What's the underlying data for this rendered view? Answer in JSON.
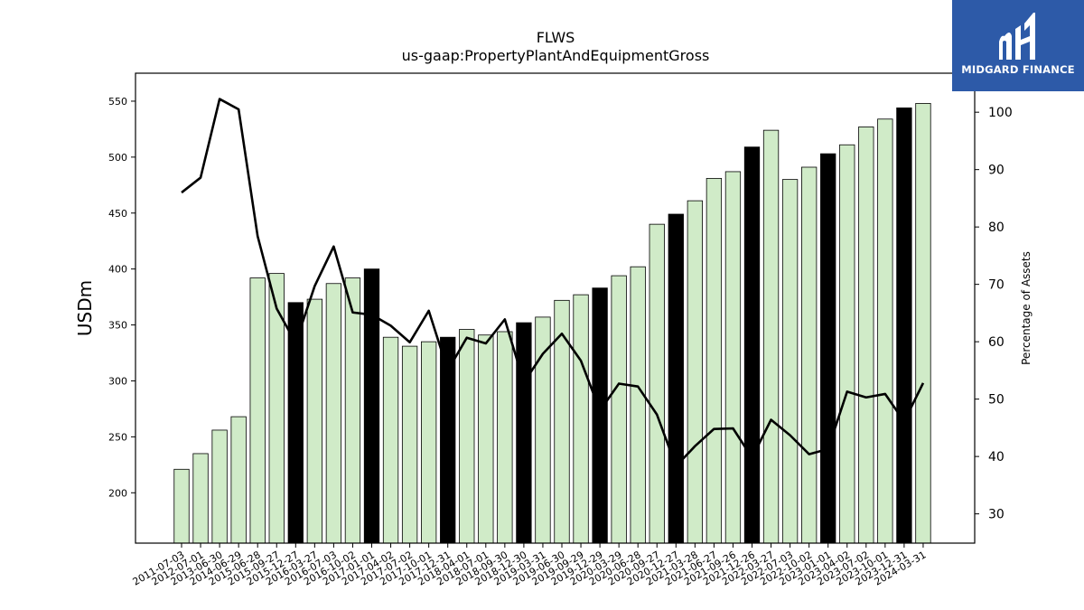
{
  "header": {
    "ticker": "FLWS",
    "concept": "us-gaap:PropertyPlantAndEquipmentGross"
  },
  "logo": {
    "text": "MIDGARD FINANCE",
    "color": "#2d5aa8"
  },
  "chart_data": {
    "type": "bar",
    "title": "FLWS",
    "subtitle": "us-gaap:PropertyPlantAndEquipmentGross",
    "ylabel": "USDm",
    "y2label": "Percentage of Assets",
    "ylim": [
      155,
      575
    ],
    "y2lim": [
      24.9,
      106.8
    ],
    "yticks": [
      200,
      250,
      300,
      350,
      400,
      450,
      500,
      550
    ],
    "y2ticks": [
      30,
      40,
      50,
      60,
      70,
      80,
      90,
      100
    ],
    "colors": {
      "bar": "#d0ebc8",
      "highlight": "#000000",
      "line": "#000000"
    },
    "categories": [
      "2011-07-03",
      "2012-07-01",
      "2013-06-30",
      "2014-06-29",
      "2015-06-28",
      "2015-09-27",
      "2015-12-27",
      "2016-03-27",
      "2016-07-03",
      "2016-10-02",
      "2017-01-01",
      "2017-04-02",
      "2017-07-02",
      "2017-10-01",
      "2017-12-31",
      "2018-04-01",
      "2018-07-01",
      "2018-09-30",
      "2018-12-30",
      "2019-03-31",
      "2019-06-30",
      "2019-09-29",
      "2019-12-29",
      "2020-03-29",
      "2020-06-28",
      "2020-09-27",
      "2020-12-27",
      "2021-03-28",
      "2021-06-27",
      "2021-09-26",
      "2021-12-26",
      "2022-03-27",
      "2022-07-03",
      "2022-10-02",
      "2023-01-01",
      "2023-04-02",
      "2023-07-02",
      "2023-10-01",
      "2023-12-31",
      "2024-03-31"
    ],
    "series": [
      {
        "type": "bar",
        "values": [
          221,
          235,
          256,
          268,
          392,
          396,
          370,
          373,
          387,
          392,
          400,
          339,
          331,
          335,
          339,
          346,
          341,
          344,
          352,
          357,
          372,
          377,
          383,
          394,
          402,
          440,
          449,
          461,
          481,
          487,
          509,
          524,
          480,
          491,
          503,
          511,
          527,
          534,
          544,
          548
        ],
        "highlight": [
          false,
          false,
          false,
          false,
          false,
          false,
          true,
          false,
          false,
          false,
          true,
          false,
          false,
          false,
          true,
          false,
          false,
          false,
          true,
          false,
          false,
          false,
          true,
          false,
          false,
          false,
          true,
          false,
          false,
          false,
          true,
          false,
          false,
          false,
          true,
          false,
          false,
          false,
          true,
          false
        ]
      },
      {
        "type": "line",
        "axis": "right",
        "values": [
          86.0,
          88.6,
          102.3,
          100.5,
          78.4,
          65.8,
          59.8,
          69.7,
          76.6,
          65.1,
          64.7,
          62.8,
          59.9,
          65.4,
          55.0,
          60.7,
          59.7,
          63.9,
          52.9,
          57.9,
          61.4,
          56.7,
          48.0,
          52.7,
          52.2,
          47.3,
          38.3,
          41.8,
          44.8,
          44.9,
          39.8,
          46.4,
          43.7,
          40.4,
          41.3,
          51.3,
          50.3,
          50.9,
          46.1,
          52.8
        ]
      }
    ]
  }
}
